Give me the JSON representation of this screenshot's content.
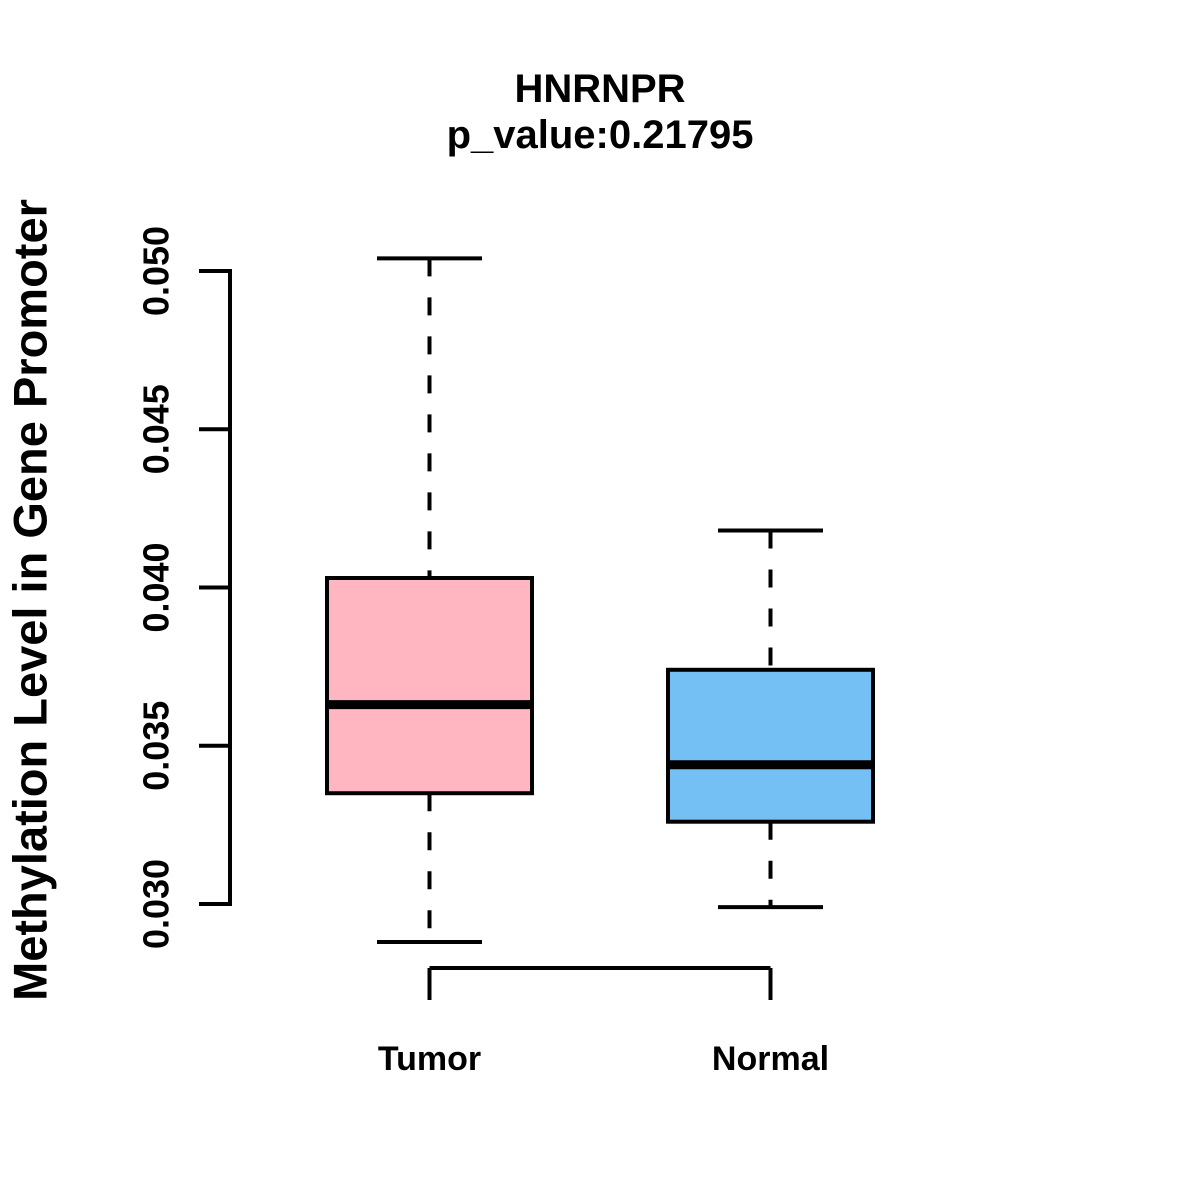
{
  "figure": {
    "title": "HNRNPR",
    "subtitle": "p_value:0.21795"
  },
  "y_axis": {
    "label": "Methylation Level in Gene Promoter",
    "tick_labels": [
      "0.030",
      "0.035",
      "0.040",
      "0.045",
      "0.050"
    ],
    "tick_values": [
      0.03,
      0.035,
      0.04,
      0.045,
      0.05
    ]
  },
  "x_axis": {
    "categories": [
      "Tumor",
      "Normal"
    ]
  },
  "chart_data": {
    "type": "boxplot",
    "title": "HNRNPR",
    "subtitle": "p_value:0.21795",
    "p_value": 0.21795,
    "xlabel": "",
    "ylabel": "Methylation Level in Gene Promoter",
    "categories": [
      "Tumor",
      "Normal"
    ],
    "ytick_labels": [
      "0.030",
      "0.035",
      "0.040",
      "0.045",
      "0.050"
    ],
    "yaxis_tick_range": [
      0.03,
      0.05
    ],
    "ylim_data": [
      0.0288,
      0.0504
    ],
    "grid": false,
    "legend": "none",
    "line_color": "#000000",
    "groups": [
      {
        "name": "Tumor",
        "fill_color": "#FFB6C1",
        "whisker_low": 0.0288,
        "q1": 0.0335,
        "median": 0.0363,
        "q3": 0.0403,
        "whisker_high": 0.0504
      },
      {
        "name": "Normal",
        "fill_color": "#74BFF3",
        "whisker_low": 0.0299,
        "q1": 0.0326,
        "median": 0.0344,
        "q3": 0.0374,
        "whisker_high": 0.0418
      }
    ]
  }
}
